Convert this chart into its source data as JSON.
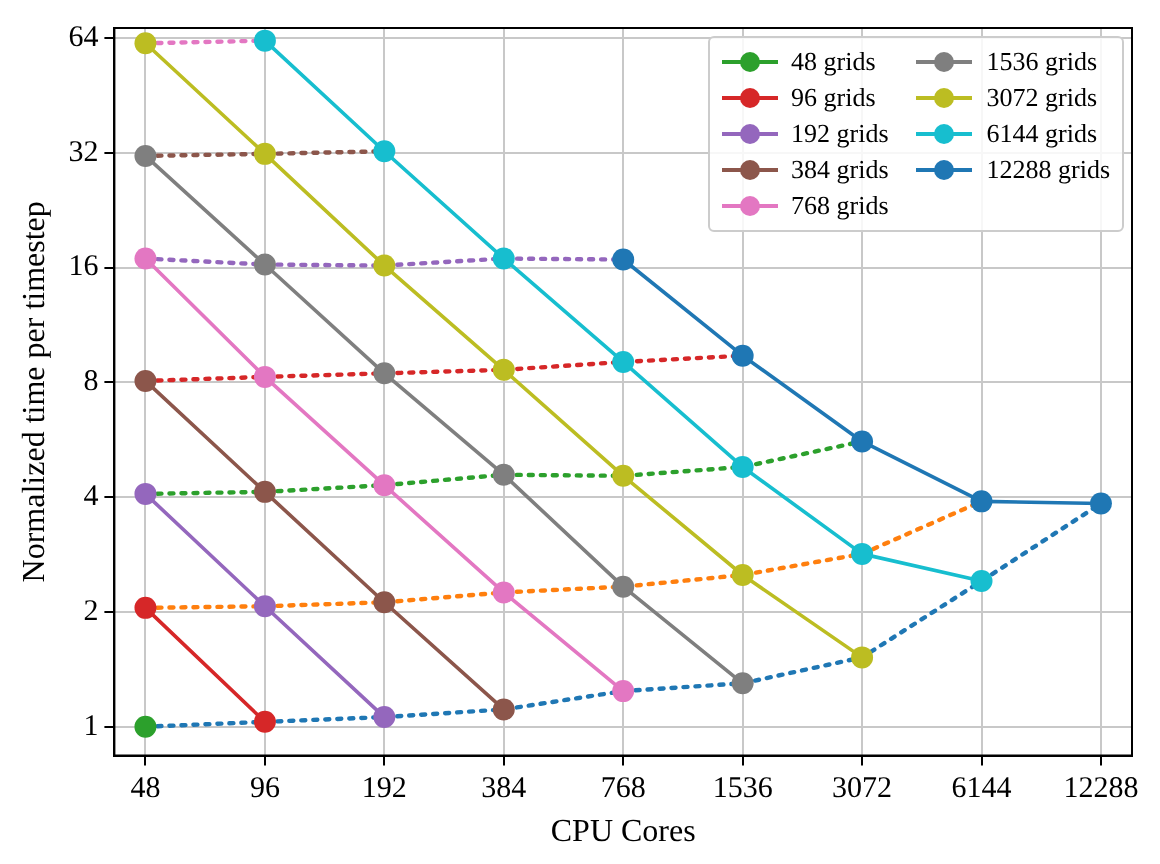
{
  "chart_data": {
    "type": "line",
    "xlabel": "CPU Cores",
    "ylabel": "Normalized time per timestep",
    "categories": [
      "48",
      "96",
      "192",
      "384",
      "768",
      "1536",
      "3072",
      "6144",
      "12288"
    ],
    "log": "y",
    "ylim": [
      0.84,
      68
    ],
    "yticks": [
      1,
      2,
      4,
      8,
      16,
      32,
      64
    ],
    "grid": true,
    "legend": "top right",
    "series": [
      {
        "name": "48 grids",
        "color": "#2ca02c",
        "marker": "circle",
        "line_style": "solid",
        "values": [
          1,
          null,
          null,
          null,
          null,
          null,
          null,
          null,
          null
        ]
      },
      {
        "name": "96 grids",
        "color": "#d62728",
        "marker": "circle",
        "line_style": "solid",
        "values": [
          2.05,
          1.03,
          null,
          null,
          null,
          null,
          null,
          null,
          null
        ]
      },
      {
        "name": "192 grids",
        "color": "#9467bd",
        "marker": "circle",
        "line_style": "solid",
        "values": [
          4.08,
          2.07,
          1.06,
          null,
          null,
          null,
          null,
          null,
          null
        ]
      },
      {
        "name": "384 grids",
        "color": "#8c564b",
        "marker": "circle",
        "line_style": "solid",
        "values": [
          8.07,
          4.13,
          2.12,
          1.11,
          null,
          null,
          null,
          null,
          null
        ]
      },
      {
        "name": "768 grids",
        "color": "#e377c2",
        "marker": "circle",
        "line_style": "solid",
        "values": [
          16.9,
          8.27,
          4.3,
          2.25,
          1.24,
          null,
          null,
          null,
          null
        ]
      },
      {
        "name": "1536 grids",
        "color": "#7f7f7f",
        "marker": "circle",
        "line_style": "solid",
        "values": [
          31.4,
          16.3,
          8.45,
          4.58,
          2.33,
          1.3,
          null,
          null,
          null
        ]
      },
      {
        "name": "3072 grids",
        "color": "#bcbd22",
        "marker": "circle",
        "line_style": "solid",
        "values": [
          62,
          31.8,
          16.2,
          8.63,
          4.55,
          2.5,
          1.52,
          null,
          null
        ]
      },
      {
        "name": "6144 grids",
        "color": "#17becf",
        "marker": "circle",
        "line_style": "solid",
        "values": [
          null,
          63,
          32.3,
          16.9,
          9.05,
          4.8,
          2.84,
          2.41,
          null
        ]
      },
      {
        "name": "12288 grids",
        "color": "#1f77b4",
        "marker": "circle",
        "line_style": "solid",
        "values": [
          null,
          null,
          null,
          null,
          16.8,
          9.4,
          5.6,
          3.9,
          3.85
        ]
      },
      {
        "color": "#1f77b4",
        "marker": "none",
        "line_style": "dotted",
        "values": [
          1,
          1.03,
          1.06,
          1.11,
          1.24,
          1.3,
          1.52,
          2.41,
          3.85
        ]
      },
      {
        "color": "#ff7f0e",
        "marker": "none",
        "line_style": "dotted",
        "values": [
          2.05,
          2.07,
          2.12,
          2.25,
          2.33,
          2.5,
          2.84,
          3.9,
          null
        ]
      },
      {
        "color": "#2ca02c",
        "marker": "none",
        "line_style": "dotted",
        "values": [
          4.08,
          4.13,
          4.3,
          4.58,
          4.55,
          4.8,
          5.6,
          null,
          null
        ]
      },
      {
        "color": "#d62728",
        "marker": "none",
        "line_style": "dotted",
        "values": [
          8.07,
          8.27,
          8.45,
          8.63,
          9.05,
          9.4,
          null,
          null,
          null
        ]
      },
      {
        "color": "#9467bd",
        "marker": "none",
        "line_style": "dotted",
        "values": [
          16.9,
          16.3,
          16.2,
          16.9,
          16.8,
          null,
          null,
          null,
          null
        ]
      },
      {
        "color": "#8c564b",
        "marker": "none",
        "line_style": "dotted",
        "values": [
          31.4,
          31.8,
          32.3,
          null,
          null,
          null,
          null,
          null,
          null
        ]
      },
      {
        "color": "#e377c2",
        "marker": "none",
        "line_style": "dotted",
        "values": [
          62,
          63,
          null,
          null,
          null,
          null,
          null,
          null,
          null
        ]
      }
    ]
  }
}
